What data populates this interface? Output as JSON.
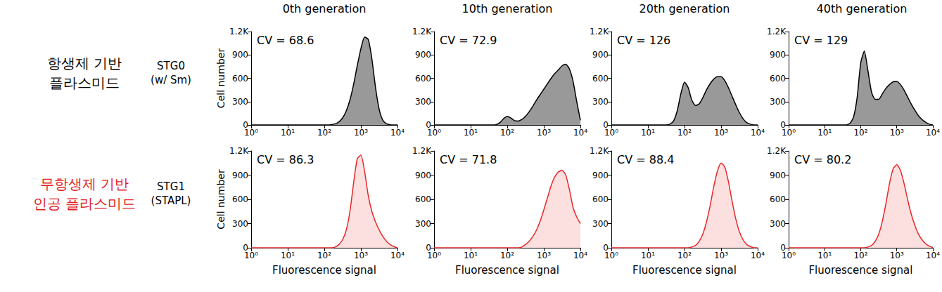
{
  "row_labels": [
    {
      "text": [
        "항생제 기반",
        "플라스미드"
      ],
      "strain": [
        "STG0",
        "(w/ Sm)"
      ],
      "color": "#000000"
    },
    {
      "text": [
        "무항생제 기반",
        "인공 플라스미드"
      ],
      "strain": [
        "STG1",
        "(STAPL)"
      ],
      "color": "#e02020"
    }
  ],
  "chart_data": [
    {
      "type": "area",
      "title": "0th generation",
      "annotation": "CV = 68.6",
      "ylabel": "Cell number",
      "color": "#000000",
      "x": [
        1,
        1.26,
        1.58,
        2,
        2.51,
        3.16,
        3.98,
        5.01,
        6.31,
        7.94,
        10,
        12.6,
        15.8,
        20,
        25.1,
        31.6,
        39.8,
        50.1,
        63.1,
        79.4,
        100,
        126,
        158,
        200,
        251,
        316,
        398,
        501,
        631,
        794,
        1000,
        1259,
        1585,
        1995,
        2512,
        3162,
        3981,
        5012,
        6310,
        7943,
        10000
      ],
      "values": [
        0,
        0,
        0,
        0,
        0,
        0,
        0,
        0,
        0,
        0,
        0,
        0,
        0,
        0,
        0,
        0,
        0,
        0,
        0,
        0,
        0,
        0,
        5,
        15,
        40,
        90,
        180,
        320,
        520,
        760,
        980,
        1130,
        1100,
        850,
        480,
        200,
        60,
        15,
        3,
        0,
        0
      ],
      "log": "x",
      "xlim": [
        1,
        10000
      ],
      "xticks": [
        {
          "value": 1,
          "label": "10⁰"
        },
        {
          "value": 10,
          "label": "10¹"
        },
        {
          "value": 100,
          "label": "10²"
        },
        {
          "value": 1000,
          "label": "10³"
        },
        {
          "value": 10000,
          "label": "10⁴"
        }
      ],
      "ylim": [
        0,
        1200
      ],
      "yticks": [
        0,
        300,
        600,
        900,
        {
          "value": 1200,
          "label": "1.2K"
        }
      ],
      "grid": false
    },
    {
      "type": "area",
      "title": "10th generation",
      "annotation": "CV = 72.9",
      "color": "#000000",
      "x": [
        1,
        1.26,
        1.58,
        2,
        2.51,
        3.16,
        3.98,
        5.01,
        6.31,
        7.94,
        10,
        12.6,
        15.8,
        20,
        25.1,
        31.6,
        39.8,
        50.1,
        63.1,
        79.4,
        100,
        126,
        158,
        200,
        251,
        316,
        398,
        501,
        631,
        794,
        1000,
        1259,
        1585,
        1995,
        2512,
        3162,
        3981,
        5012,
        6310,
        7943,
        10000
      ],
      "values": [
        0,
        0,
        0,
        0,
        0,
        0,
        0,
        0,
        0,
        0,
        0,
        0,
        0,
        0,
        0,
        0,
        0,
        5,
        30,
        80,
        110,
        90,
        55,
        50,
        70,
        110,
        170,
        240,
        320,
        390,
        460,
        530,
        600,
        660,
        710,
        760,
        780,
        720,
        560,
        300,
        60
      ],
      "log": "x",
      "xlim": [
        1,
        10000
      ],
      "xticks": [
        {
          "value": 1,
          "label": "10⁰"
        },
        {
          "value": 10,
          "label": "10¹"
        },
        {
          "value": 100,
          "label": "10²"
        },
        {
          "value": 1000,
          "label": "10³"
        },
        {
          "value": 10000,
          "label": "10⁴"
        }
      ],
      "ylim": [
        0,
        1200
      ],
      "yticks": [
        0,
        300,
        600,
        900,
        {
          "value": 1200,
          "label": "1.2K"
        }
      ],
      "grid": false
    },
    {
      "type": "area",
      "title": "20th generation",
      "annotation": "CV = 126",
      "color": "#000000",
      "x": [
        1,
        1.26,
        1.58,
        2,
        2.51,
        3.16,
        3.98,
        5.01,
        6.31,
        7.94,
        10,
        12.6,
        15.8,
        20,
        25.1,
        31.6,
        39.8,
        50.1,
        63.1,
        79.4,
        100,
        126,
        158,
        200,
        251,
        316,
        398,
        501,
        631,
        794,
        1000,
        1259,
        1585,
        1995,
        2512,
        3162,
        3981,
        5012,
        6310,
        7943,
        10000
      ],
      "values": [
        0,
        0,
        0,
        0,
        0,
        0,
        0,
        0,
        0,
        0,
        0,
        0,
        0,
        0,
        0,
        0,
        10,
        50,
        180,
        400,
        550,
        480,
        320,
        250,
        270,
        350,
        450,
        530,
        590,
        620,
        620,
        570,
        480,
        370,
        260,
        160,
        80,
        30,
        10,
        0,
        0
      ],
      "log": "x",
      "xlim": [
        1,
        10000
      ],
      "xticks": [
        {
          "value": 1,
          "label": "10⁰"
        },
        {
          "value": 10,
          "label": "10¹"
        },
        {
          "value": 100,
          "label": "10²"
        },
        {
          "value": 1000,
          "label": "10³"
        },
        {
          "value": 10000,
          "label": "10⁴"
        }
      ],
      "ylim": [
        0,
        1200
      ],
      "yticks": [
        0,
        300,
        600,
        900,
        {
          "value": 1200,
          "label": "1.2K"
        }
      ],
      "grid": false
    },
    {
      "type": "area",
      "title": "40th generation",
      "annotation": "CV = 129",
      "color": "#000000",
      "x": [
        1,
        1.26,
        1.58,
        2,
        2.51,
        3.16,
        3.98,
        5.01,
        6.31,
        7.94,
        10,
        12.6,
        15.8,
        20,
        25.1,
        31.6,
        39.8,
        50.1,
        63.1,
        79.4,
        100,
        126,
        158,
        200,
        251,
        316,
        398,
        501,
        631,
        794,
        1000,
        1259,
        1585,
        1995,
        2512,
        3162,
        3981,
        5012,
        6310,
        7943,
        10000
      ],
      "values": [
        0,
        0,
        0,
        0,
        0,
        0,
        0,
        0,
        0,
        0,
        0,
        0,
        0,
        0,
        0,
        0,
        0,
        20,
        100,
        350,
        800,
        950,
        700,
        420,
        330,
        330,
        400,
        470,
        520,
        555,
        560,
        520,
        450,
        360,
        270,
        190,
        120,
        70,
        35,
        10,
        0
      ],
      "log": "x",
      "xlim": [
        1,
        10000
      ],
      "xticks": [
        {
          "value": 1,
          "label": "10⁰"
        },
        {
          "value": 10,
          "label": "10¹"
        },
        {
          "value": 100,
          "label": "10²"
        },
        {
          "value": 1000,
          "label": "10³"
        },
        {
          "value": 10000,
          "label": "10⁴"
        }
      ],
      "ylim": [
        0,
        1200
      ],
      "yticks": [
        0,
        300,
        600,
        900,
        {
          "value": 1200,
          "label": "1.2K"
        }
      ],
      "grid": false
    },
    {
      "type": "area",
      "annotation": "CV = 86.3",
      "ylabel": "Cell number",
      "xlabel": "Fluorescence signal",
      "color": "#e8282a",
      "x": [
        1,
        1.26,
        1.58,
        2,
        2.51,
        3.16,
        3.98,
        5.01,
        6.31,
        7.94,
        10,
        12.6,
        15.8,
        20,
        25.1,
        31.6,
        39.8,
        50.1,
        63.1,
        79.4,
        100,
        126,
        158,
        200,
        251,
        316,
        398,
        501,
        631,
        794,
        1000,
        1259,
        1585,
        1995,
        2512,
        3162,
        3981,
        5012,
        6310,
        7943,
        10000
      ],
      "values": [
        0,
        0,
        0,
        0,
        0,
        0,
        0,
        0,
        0,
        0,
        0,
        0,
        0,
        0,
        0,
        0,
        0,
        0,
        0,
        0,
        0,
        0,
        0,
        10,
        40,
        100,
        220,
        450,
        800,
        1100,
        1150,
        950,
        650,
        450,
        320,
        220,
        140,
        80,
        40,
        15,
        0
      ],
      "log": "x",
      "xlim": [
        1,
        10000
      ],
      "xticks": [
        {
          "value": 1,
          "label": "10⁰"
        },
        {
          "value": 10,
          "label": "10¹"
        },
        {
          "value": 100,
          "label": "10²"
        },
        {
          "value": 1000,
          "label": "10³"
        },
        {
          "value": 10000,
          "label": "10⁴"
        }
      ],
      "ylim": [
        0,
        1200
      ],
      "yticks": [
        0,
        300,
        600,
        900,
        {
          "value": 1200,
          "label": "1.2K"
        }
      ],
      "grid": false
    },
    {
      "type": "area",
      "annotation": "CV = 71.8",
      "xlabel": "Fluorescence signal",
      "color": "#e8282a",
      "x": [
        1,
        1.26,
        1.58,
        2,
        2.51,
        3.16,
        3.98,
        5.01,
        6.31,
        7.94,
        10,
        12.6,
        15.8,
        20,
        25.1,
        31.6,
        39.8,
        50.1,
        63.1,
        79.4,
        100,
        126,
        158,
        200,
        251,
        316,
        398,
        501,
        631,
        794,
        1000,
        1259,
        1585,
        1995,
        2512,
        3162,
        3981,
        5012,
        6310,
        7943,
        10000
      ],
      "values": [
        0,
        0,
        0,
        0,
        0,
        0,
        0,
        0,
        0,
        0,
        0,
        0,
        0,
        0,
        0,
        0,
        0,
        0,
        0,
        0,
        0,
        0,
        0,
        0,
        10,
        40,
        80,
        140,
        220,
        330,
        470,
        620,
        770,
        880,
        940,
        960,
        900,
        720,
        500,
        380,
        300
      ],
      "log": "x",
      "xlim": [
        1,
        10000
      ],
      "xticks": [
        {
          "value": 1,
          "label": "10⁰"
        },
        {
          "value": 10,
          "label": "10¹"
        },
        {
          "value": 100,
          "label": "10²"
        },
        {
          "value": 1000,
          "label": "10³"
        },
        {
          "value": 10000,
          "label": "10⁴"
        }
      ],
      "ylim": [
        0,
        1200
      ],
      "yticks": [
        0,
        300,
        600,
        900,
        {
          "value": 1200,
          "label": "1.2K"
        }
      ],
      "grid": false
    },
    {
      "type": "area",
      "annotation": "CV = 88.4",
      "xlabel": "Fluorescence signal",
      "color": "#e8282a",
      "x": [
        1,
        1.26,
        1.58,
        2,
        2.51,
        3.16,
        3.98,
        5.01,
        6.31,
        7.94,
        10,
        12.6,
        15.8,
        20,
        25.1,
        31.6,
        39.8,
        50.1,
        63.1,
        79.4,
        100,
        126,
        158,
        200,
        251,
        316,
        398,
        501,
        631,
        794,
        1000,
        1259,
        1585,
        1995,
        2512,
        3162,
        3981,
        5012,
        6310,
        7943,
        10000
      ],
      "values": [
        0,
        0,
        0,
        0,
        0,
        0,
        0,
        0,
        0,
        0,
        0,
        0,
        0,
        0,
        0,
        0,
        0,
        0,
        0,
        0,
        0,
        0,
        10,
        30,
        80,
        170,
        320,
        520,
        760,
        950,
        1050,
        1000,
        820,
        580,
        360,
        200,
        100,
        40,
        15,
        0,
        0
      ],
      "log": "x",
      "xlim": [
        1,
        10000
      ],
      "xticks": [
        {
          "value": 1,
          "label": "10⁰"
        },
        {
          "value": 10,
          "label": "10¹"
        },
        {
          "value": 100,
          "label": "10²"
        },
        {
          "value": 1000,
          "label": "10³"
        },
        {
          "value": 10000,
          "label": "10⁴"
        }
      ],
      "ylim": [
        0,
        1200
      ],
      "yticks": [
        0,
        300,
        600,
        900,
        {
          "value": 1200,
          "label": "1.2K"
        }
      ],
      "grid": false
    },
    {
      "type": "area",
      "annotation": "CV = 80.2",
      "xlabel": "Fluorescence signal",
      "color": "#e8282a",
      "x": [
        1,
        1.26,
        1.58,
        2,
        2.51,
        3.16,
        3.98,
        5.01,
        6.31,
        7.94,
        10,
        12.6,
        15.8,
        20,
        25.1,
        31.6,
        39.8,
        50.1,
        63.1,
        79.4,
        100,
        126,
        158,
        200,
        251,
        316,
        398,
        501,
        631,
        794,
        1000,
        1259,
        1585,
        1995,
        2512,
        3162,
        3981,
        5012,
        6310,
        7943,
        10000
      ],
      "values": [
        0,
        0,
        0,
        0,
        0,
        0,
        0,
        0,
        0,
        0,
        0,
        0,
        0,
        0,
        0,
        0,
        0,
        0,
        0,
        0,
        0,
        0,
        10,
        30,
        80,
        170,
        330,
        550,
        800,
        980,
        1030,
        960,
        800,
        600,
        420,
        280,
        170,
        100,
        50,
        20,
        5
      ],
      "log": "x",
      "xlim": [
        1,
        10000
      ],
      "xticks": [
        {
          "value": 1,
          "label": "10⁰"
        },
        {
          "value": 10,
          "label": "10¹"
        },
        {
          "value": 100,
          "label": "10²"
        },
        {
          "value": 1000,
          "label": "10³"
        },
        {
          "value": 10000,
          "label": "10⁴"
        }
      ],
      "ylim": [
        0,
        1200
      ],
      "yticks": [
        0,
        300,
        600,
        900,
        {
          "value": 1200,
          "label": "1.2K"
        }
      ],
      "grid": false
    }
  ]
}
